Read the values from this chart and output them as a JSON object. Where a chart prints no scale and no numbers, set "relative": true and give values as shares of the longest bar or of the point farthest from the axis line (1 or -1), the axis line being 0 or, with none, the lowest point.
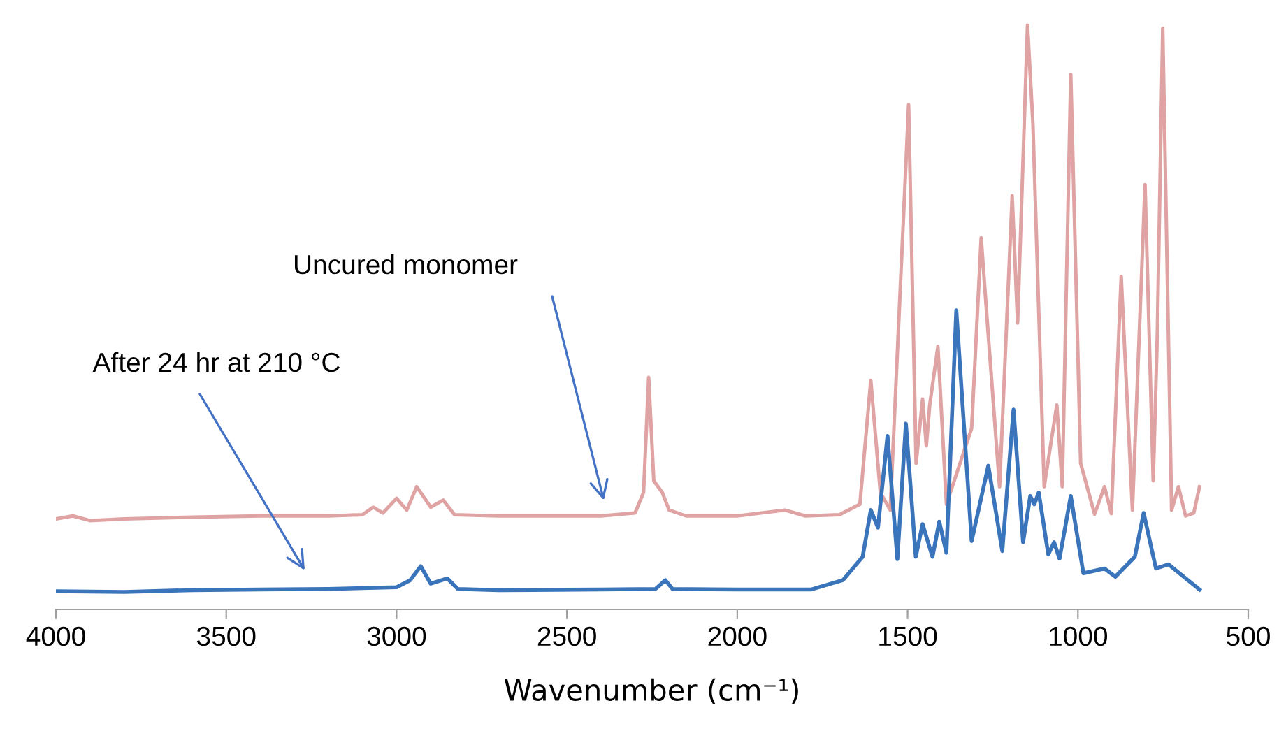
{
  "chart_data": {
    "type": "line",
    "relative": true,
    "xlabel": "Wavenumber (cm⁻¹)",
    "xlim": [
      4000,
      500
    ],
    "xticks": [
      4000,
      3500,
      3000,
      2500,
      2000,
      1500,
      1000,
      500
    ],
    "grid": false,
    "legend": false,
    "marker": "none",
    "line_style": "solid",
    "tick_labels": "x",
    "series": [
      {
        "color": "#e0a3a3",
        "x": [
          4000,
          3950,
          3900,
          3800,
          3600,
          3400,
          3200,
          3100,
          3069,
          3040,
          3000,
          2970,
          2941,
          2900,
          2863,
          2830,
          2700,
          2500,
          2400,
          2300,
          2275,
          2260,
          2245,
          2220,
          2200,
          2150,
          2000,
          1860,
          1800,
          1700,
          1640,
          1608,
          1580,
          1551,
          1497,
          1475,
          1456,
          1445,
          1435,
          1411,
          1386,
          1312,
          1284,
          1267,
          1230,
          1193,
          1177,
          1148,
          1132,
          1099,
          1062,
          1046,
          1021,
          992,
          951,
          922,
          902,
          873,
          840,
          803,
          779,
          767,
          751,
          725,
          705,
          684,
          660,
          643
        ],
        "values": [
          0.155,
          0.16,
          0.152,
          0.155,
          0.158,
          0.16,
          0.16,
          0.162,
          0.175,
          0.165,
          0.19,
          0.17,
          0.21,
          0.175,
          0.187,
          0.162,
          0.16,
          0.16,
          0.16,
          0.165,
          0.2,
          0.397,
          0.22,
          0.2,
          0.17,
          0.16,
          0.16,
          0.17,
          0.16,
          0.162,
          0.18,
          0.392,
          0.2,
          0.17,
          0.864,
          0.25,
          0.36,
          0.28,
          0.35,
          0.45,
          0.18,
          0.31,
          0.636,
          0.5,
          0.21,
          0.708,
          0.49,
          1.0,
          0.83,
          0.21,
          0.35,
          0.21,
          0.916,
          0.25,
          0.163,
          0.21,
          0.164,
          0.57,
          0.17,
          0.727,
          0.22,
          0.47,
          0.995,
          0.17,
          0.21,
          0.16,
          0.165,
          0.21
        ]
      },
      {
        "color": "#3a74bb",
        "x": [
          4000,
          3800,
          3600,
          3400,
          3200,
          3000,
          2960,
          2929,
          2900,
          2851,
          2820,
          2700,
          2400,
          2240,
          2211,
          2190,
          2000,
          1784,
          1690,
          1632,
          1608,
          1587,
          1559,
          1530,
          1505,
          1476,
          1456,
          1427,
          1407,
          1386,
          1357,
          1312,
          1263,
          1222,
          1189,
          1161,
          1140,
          1128,
          1115,
          1087,
          1070,
          1054,
          1021,
          984,
          922,
          890,
          833,
          807,
          771,
          734,
          643
        ],
        "values": [
          0.031,
          0.03,
          0.033,
          0.034,
          0.035,
          0.038,
          0.05,
          0.074,
          0.044,
          0.053,
          0.035,
          0.033,
          0.034,
          0.035,
          0.05,
          0.035,
          0.034,
          0.034,
          0.05,
          0.09,
          0.17,
          0.14,
          0.297,
          0.086,
          0.318,
          0.09,
          0.146,
          0.09,
          0.15,
          0.097,
          0.512,
          0.117,
          0.246,
          0.1,
          0.342,
          0.115,
          0.194,
          0.18,
          0.2,
          0.094,
          0.115,
          0.087,
          0.194,
          0.062,
          0.07,
          0.056,
          0.09,
          0.165,
          0.07,
          0.077,
          0.034
        ]
      }
    ],
    "annotations": [
      "Uncured monomer",
      "After 24 hr at 210 °C"
    ]
  }
}
